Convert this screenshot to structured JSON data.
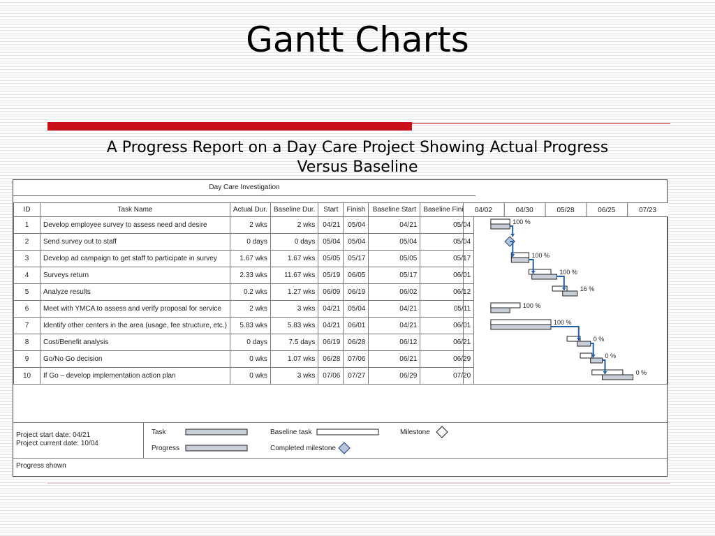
{
  "slide": {
    "title": "Gantt Charts",
    "subtitle_line1": "A Progress Report on a Day Care Project Showing Actual Progress",
    "subtitle_line2": "Versus Baseline"
  },
  "chart_data": {
    "type": "gantt",
    "title": "Day Care Investigation",
    "columns": [
      "ID",
      "Task Name",
      "Actual Dur.",
      "Baseline Dur.",
      "Start",
      "Finish",
      "Baseline Start",
      "Baseline Finish"
    ],
    "timeline_ticks": [
      "04/02",
      "04/30",
      "05/28",
      "06/25",
      "07/23"
    ],
    "tasks": [
      {
        "id": "1",
        "name": "Develop employee survey to assess need and desire",
        "actual_dur": "2 wks",
        "baseline_dur": "2 wks",
        "start": "04/21",
        "finish": "05/04",
        "baseline_start": "04/21",
        "baseline_finish": "05/04",
        "progress": "100 %",
        "milestone": false
      },
      {
        "id": "2",
        "name": "Send survey out to staff",
        "actual_dur": "0 days",
        "baseline_dur": "0 days",
        "start": "05/04",
        "finish": "05/04",
        "baseline_start": "05/04",
        "baseline_finish": "05/04",
        "progress": "",
        "milestone": true
      },
      {
        "id": "3",
        "name": "Develop ad campaign to get staff to participate in survey",
        "actual_dur": "1.67 wks",
        "baseline_dur": "1.67 wks",
        "start": "05/05",
        "finish": "05/17",
        "baseline_start": "05/05",
        "baseline_finish": "05/17",
        "progress": "100 %",
        "milestone": false
      },
      {
        "id": "4",
        "name": "Surveys return",
        "actual_dur": "2.33 wks",
        "baseline_dur": "11.67 wks",
        "start": "05/19",
        "finish": "06/05",
        "baseline_start": "05/17",
        "baseline_finish": "06/01",
        "progress": "100 %",
        "milestone": false
      },
      {
        "id": "5",
        "name": "Analyze results",
        "actual_dur": "0.2 wks",
        "baseline_dur": "1.27 wks",
        "start": "06/09",
        "finish": "06/19",
        "baseline_start": "06/02",
        "baseline_finish": "06/12",
        "progress": "16 %",
        "milestone": false
      },
      {
        "id": "6",
        "name": "Meet with YMCA to assess and verify proposal for service",
        "actual_dur": "2 wks",
        "baseline_dur": "3 wks",
        "start": "04/21",
        "finish": "05/04",
        "baseline_start": "04/21",
        "baseline_finish": "05/11",
        "progress": "100 %",
        "milestone": false
      },
      {
        "id": "7",
        "name": "Identify other centers in the area (usage, fee structure, etc.)",
        "actual_dur": "5.83 wks",
        "baseline_dur": "5.83 wks",
        "start": "04/21",
        "finish": "06/01",
        "baseline_start": "04/21",
        "baseline_finish": "06/01",
        "progress": "100 %",
        "milestone": false
      },
      {
        "id": "8",
        "name": "Cost/Benefit analysis",
        "actual_dur": "0 days",
        "baseline_dur": "7.5 days",
        "start": "06/19",
        "finish": "06/28",
        "baseline_start": "06/12",
        "baseline_finish": "06/21",
        "progress": "0 %",
        "milestone": false
      },
      {
        "id": "9",
        "name": "Go/No Go decision",
        "actual_dur": "0 wks",
        "baseline_dur": "1.07 wks",
        "start": "06/28",
        "finish": "07/06",
        "baseline_start": "06/21",
        "baseline_finish": "06/29",
        "progress": "0 %",
        "milestone": false
      },
      {
        "id": "10",
        "name": "If Go – develop implementation action plan",
        "actual_dur": "0 wks",
        "baseline_dur": "3 wks",
        "start": "07/06",
        "finish": "07/27",
        "baseline_start": "06/29",
        "baseline_finish": "07/20",
        "progress": "0 %",
        "milestone": false
      }
    ],
    "legend": {
      "project_start": "Project start date: 04/21",
      "project_current": "Project current date: 10/04",
      "task": "Task",
      "progress": "Progress",
      "baseline_task": "Baseline task",
      "completed_milestone": "Completed milestone",
      "milestone": "Milestone",
      "progress_shown": "Progress shown"
    },
    "colors": {
      "task_fill": "#c9cfd9",
      "link": "#1f5fa8",
      "border": "#222222"
    }
  }
}
